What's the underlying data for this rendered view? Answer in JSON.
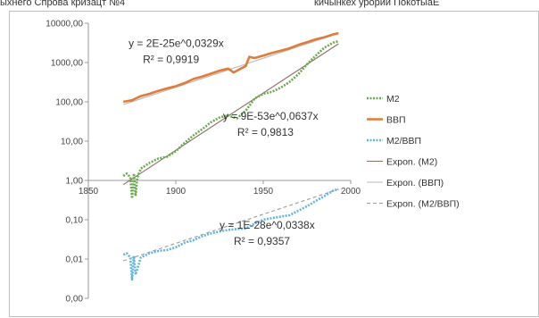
{
  "header": {
    "left_text": "ыхнего Спрова кризацт №4",
    "right_text": "кичынкех урории ПокотыаЕ"
  },
  "chart_data": {
    "type": "line",
    "y_scale": "log",
    "xlim": [
      1850,
      2000
    ],
    "ylim": [
      0.001,
      10000
    ],
    "x_ticks": [
      1850,
      1900,
      1950,
      2000
    ],
    "x_tick_labels": [
      "1850",
      "1900",
      "1950",
      "2000"
    ],
    "y_ticks": [
      0.001,
      0.01,
      0.1,
      1,
      10,
      100,
      1000,
      10000
    ],
    "y_tick_labels": [
      "0,00",
      "0,01",
      "0,10",
      "1,00",
      "10,00",
      "100,00",
      "1000,00",
      "10000,00"
    ],
    "grid": false,
    "legend_position": "right",
    "series": [
      {
        "name": "M2",
        "color": "#6aa84f",
        "style": "dotted",
        "x": [
          1870,
          1872,
          1874,
          1875,
          1876,
          1877,
          1878,
          1880,
          1885,
          1890,
          1895,
          1900,
          1905,
          1910,
          1915,
          1920,
          1925,
          1930,
          1935,
          1940,
          1945,
          1950,
          1955,
          1960,
          1965,
          1970,
          1975,
          1980,
          1985,
          1990,
          1993
        ],
        "values": [
          1.3,
          1.5,
          1.2,
          0.35,
          1.5,
          0.4,
          1.2,
          2.0,
          2.8,
          3.6,
          4.0,
          5.5,
          9,
          14,
          20,
          30,
          40,
          45,
          38,
          60,
          120,
          160,
          180,
          230,
          320,
          500,
          900,
          1500,
          2400,
          3200,
          3500
        ]
      },
      {
        "name": "ВВП",
        "color": "#e07b39",
        "style": "solid",
        "x": [
          1870,
          1875,
          1880,
          1885,
          1890,
          1895,
          1900,
          1905,
          1910,
          1915,
          1920,
          1925,
          1930,
          1933,
          1935,
          1940,
          1942,
          1945,
          1950,
          1955,
          1960,
          1965,
          1970,
          1975,
          1980,
          1985,
          1990,
          1993
        ],
        "values": [
          100,
          110,
          140,
          160,
          190,
          220,
          250,
          300,
          380,
          440,
          520,
          620,
          700,
          560,
          620,
          820,
          1400,
          1300,
          1500,
          1750,
          2000,
          2300,
          2800,
          3300,
          3900,
          4400,
          5200,
          5600
        ]
      },
      {
        "name": "М2/ВВП",
        "color": "#5fb4e0",
        "style": "dotted",
        "x": [
          1870,
          1872,
          1874,
          1875,
          1876,
          1877,
          1880,
          1885,
          1890,
          1895,
          1900,
          1905,
          1910,
          1915,
          1920,
          1925,
          1930,
          1935,
          1940,
          1945,
          1950,
          1955,
          1960,
          1965,
          1970,
          1975,
          1980,
          1985,
          1990,
          1993
        ],
        "values": [
          0.013,
          0.014,
          0.011,
          0.003,
          0.012,
          0.004,
          0.011,
          0.014,
          0.016,
          0.017,
          0.02,
          0.026,
          0.03,
          0.038,
          0.045,
          0.05,
          0.055,
          0.058,
          0.06,
          0.08,
          0.1,
          0.11,
          0.12,
          0.13,
          0.17,
          0.22,
          0.3,
          0.4,
          0.55,
          0.6
        ]
      },
      {
        "name": "Expon. (M2)",
        "color": "#8c6d62",
        "style": "solid",
        "x": [
          1870,
          1993
        ],
        "values": [
          0.78,
          3000
        ]
      },
      {
        "name": "Expon. (ВВП)",
        "color": "#b8b8b8",
        "style": "solid",
        "x": [
          1870,
          1993
        ],
        "values": [
          85,
          5500
        ]
      },
      {
        "name": "Expon. (М2/ВВП)",
        "color": "#9a9a9a",
        "style": "dashed",
        "x": [
          1870,
          1993
        ],
        "values": [
          0.009,
          0.6
        ]
      }
    ],
    "annotations": [
      {
        "lines": [
          "y = 2E-25e^0,0329x",
          "R² = 0,9919"
        ],
        "anchor": [
          1873,
          2500
        ]
      },
      {
        "lines": [
          "y = 9E-53e^0,0637x",
          "R² = 0,9813"
        ],
        "anchor": [
          1927,
          35
        ]
      },
      {
        "lines": [
          "y = 1E-28e^0,0338x",
          "R² = 0,9357"
        ],
        "anchor": [
          1925,
          0.06
        ]
      }
    ]
  }
}
